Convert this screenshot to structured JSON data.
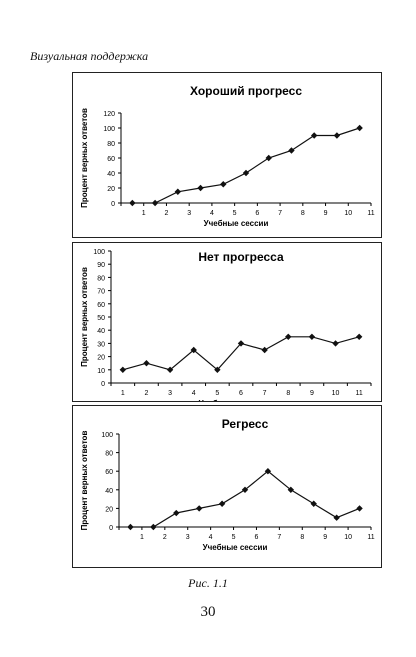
{
  "running_head": "Визуальная поддержка",
  "caption": "Рис. 1.1",
  "page_number": "30",
  "marker_color": "#111111",
  "chart_data": [
    {
      "type": "line",
      "title": "Хороший прогресс",
      "xlabel": "Учебные сессии",
      "ylabel": "Процент верных ответов",
      "x": [
        1,
        2,
        3,
        4,
        5,
        6,
        7,
        8,
        9,
        10,
        11
      ],
      "values": [
        0,
        0,
        15,
        20,
        25,
        40,
        60,
        70,
        90,
        90,
        100
      ],
      "ylim": [
        0,
        120
      ],
      "yticks": [
        0,
        20,
        40,
        60,
        80,
        100,
        120
      ],
      "grid": false
    },
    {
      "type": "line",
      "title": "Нет прогресса",
      "xlabel": "Учебные сессии",
      "ylabel": "Процент верных ответов",
      "x": [
        1,
        2,
        3,
        4,
        5,
        6,
        7,
        8,
        9,
        10,
        11
      ],
      "values": [
        10,
        15,
        10,
        25,
        10,
        30,
        25,
        35,
        35,
        30,
        35
      ],
      "ylim": [
        0,
        100
      ],
      "yticks": [
        0,
        10,
        20,
        30,
        40,
        50,
        60,
        70,
        80,
        90,
        100
      ],
      "grid": false
    },
    {
      "type": "line",
      "title": "Регресс",
      "xlabel": "Учебные сессии",
      "ylabel": "Процент верных ответов",
      "x": [
        1,
        2,
        3,
        4,
        5,
        6,
        7,
        8,
        9,
        10,
        11
      ],
      "values": [
        0,
        0,
        15,
        20,
        25,
        40,
        60,
        40,
        25,
        10,
        20
      ],
      "ylim": [
        0,
        100
      ],
      "yticks": [
        0,
        20,
        40,
        60,
        80,
        100
      ],
      "grid": false
    }
  ]
}
